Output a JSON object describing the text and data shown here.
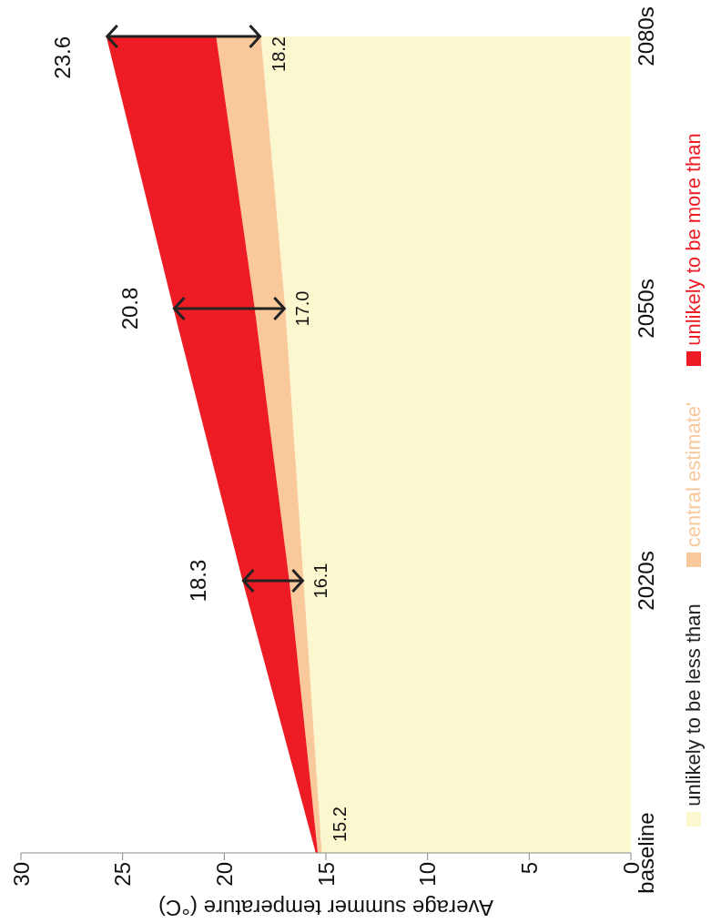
{
  "chart_data": {
    "type": "area",
    "orientation": "horizontal",
    "stacked": true,
    "xlabel": "Average summer temperature (°C)",
    "categories": [
      "2080s",
      "2050s",
      "2020s",
      "baseline"
    ],
    "series": [
      {
        "name": "unlikely to be less than",
        "color": "#fbf8cf",
        "values": [
          18.2,
          17.0,
          16.1,
          15.2
        ],
        "value_labels": [
          "18.2",
          "17.0",
          "16.1",
          "15.2"
        ]
      },
      {
        "name": "central estimate'",
        "color": "#f9c99b",
        "values": [
          2.2,
          1.5,
          0.7,
          0.2
        ]
      },
      {
        "name": "unlikely to be more than",
        "color": "#ed1c24",
        "values": [
          5.4,
          4.0,
          2.3,
          0.1
        ]
      }
    ],
    "annotations": [
      "23.6",
      "20.8",
      "18.3"
    ],
    "xlim": [
      30,
      0
    ],
    "xticks": [
      30,
      25,
      20,
      15,
      10,
      5,
      0
    ],
    "legend": "right"
  }
}
